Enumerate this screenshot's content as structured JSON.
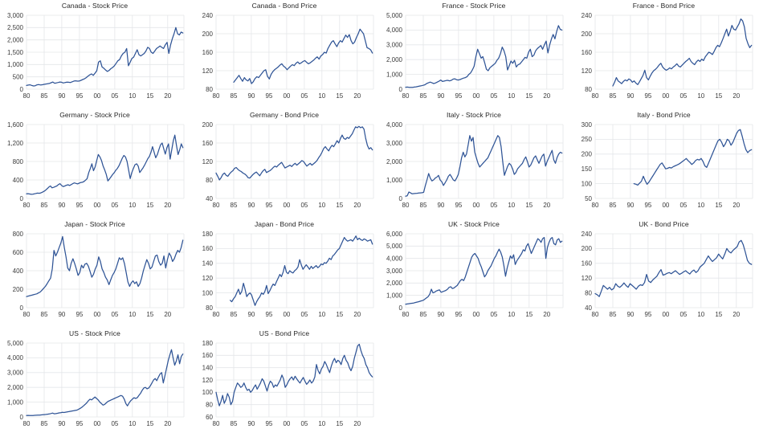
{
  "style": {
    "line_color": "#2F5496",
    "grid_color": "#E4E6E9",
    "text_color": "#3b3b3b",
    "title_color": "#262626",
    "background": "#ffffff"
  },
  "x_axis": {
    "min": 1980,
    "max": 2024.6,
    "ticks": [
      1980,
      1985,
      1990,
      1995,
      2000,
      2005,
      2010,
      2015,
      2020
    ],
    "tick_labels": [
      "80",
      "85",
      "90",
      "95",
      "00",
      "05",
      "10",
      "15",
      "20"
    ]
  },
  "chart_data": [
    {
      "type": "line",
      "title": "Canada - Stock Price",
      "ylim": [
        0,
        3000
      ],
      "ytick": 500,
      "x_start": 1980,
      "x_end": 2024.3,
      "values": [
        150,
        165,
        175,
        150,
        130,
        140,
        175,
        185,
        170,
        180,
        195,
        210,
        220,
        230,
        260,
        290,
        240,
        255,
        270,
        290,
        280,
        250,
        270,
        285,
        280,
        270,
        300,
        330,
        340,
        325,
        330,
        360,
        390,
        420,
        470,
        530,
        580,
        620,
        560,
        650,
        750,
        1100,
        1150,
        900,
        850,
        780,
        720,
        760,
        830,
        880,
        950,
        1050,
        1150,
        1200,
        1350,
        1450,
        1500,
        1650,
        950,
        1100,
        1250,
        1300,
        1450,
        1600,
        1400,
        1350,
        1400,
        1450,
        1550,
        1700,
        1650,
        1500,
        1450,
        1550,
        1650,
        1700,
        1750,
        1700,
        1650,
        1800,
        1900,
        1450,
        1800,
        2050,
        2250,
        2500,
        2250,
        2200,
        2320,
        2280
      ]
    },
    {
      "type": "line",
      "title": "Canada - Bond Price",
      "ylim": [
        80,
        240
      ],
      "ytick": 40,
      "x_start": 1985,
      "x_end": 2024.3,
      "values": [
        95,
        100,
        105,
        110,
        103,
        97,
        105,
        100,
        98,
        103,
        92,
        96,
        103,
        107,
        105,
        110,
        115,
        120,
        122,
        108,
        102,
        112,
        118,
        122,
        125,
        128,
        132,
        135,
        130,
        127,
        122,
        126,
        130,
        133,
        131,
        136,
        139,
        135,
        137,
        140,
        142,
        138,
        135,
        137,
        140,
        143,
        147,
        150,
        145,
        152,
        155,
        160,
        158,
        168,
        175,
        182,
        185,
        178,
        172,
        180,
        185,
        182,
        190,
        197,
        192,
        198,
        185,
        178,
        182,
        192,
        200,
        210,
        205,
        200,
        185,
        170,
        168,
        165,
        158
      ]
    },
    {
      "type": "line",
      "title": "France - Stock Price",
      "ylim": [
        0,
        5000
      ],
      "ytick": 1000,
      "x_start": 1980,
      "x_end": 2024.3,
      "values": [
        130,
        140,
        125,
        120,
        125,
        140,
        160,
        185,
        210,
        235,
        260,
        300,
        380,
        430,
        480,
        430,
        380,
        420,
        480,
        540,
        620,
        520,
        550,
        580,
        600,
        560,
        600,
        680,
        700,
        640,
        620,
        650,
        700,
        750,
        780,
        850,
        1000,
        1100,
        1300,
        1550,
        2200,
        2700,
        2400,
        2100,
        2200,
        1800,
        1350,
        1250,
        1450,
        1550,
        1650,
        1750,
        1950,
        2100,
        2400,
        2850,
        2600,
        2200,
        1300,
        1600,
        1900,
        1750,
        1950,
        1500,
        1650,
        1700,
        1850,
        2000,
        2150,
        2100,
        2500,
        2700,
        2200,
        2300,
        2600,
        2750,
        2850,
        2950,
        2700,
        3000,
        3250,
        2450,
        3000,
        3400,
        3700,
        3400,
        3900,
        4300,
        4050,
        4000
      ]
    },
    {
      "type": "line",
      "title": "France - Bond Price",
      "ylim": [
        80,
        240
      ],
      "ytick": 40,
      "x_start": 1985,
      "x_end": 2024.3,
      "values": [
        87,
        95,
        105,
        98,
        95,
        92,
        97,
        100,
        98,
        102,
        100,
        95,
        98,
        93,
        90,
        96,
        103,
        110,
        121,
        105,
        100,
        108,
        115,
        120,
        123,
        127,
        132,
        136,
        128,
        124,
        121,
        123,
        126,
        124,
        128,
        131,
        135,
        130,
        128,
        132,
        136,
        140,
        143,
        147,
        140,
        136,
        133,
        139,
        143,
        140,
        145,
        142,
        150,
        155,
        160,
        158,
        155,
        162,
        170,
        175,
        172,
        180,
        190,
        200,
        210,
        195,
        205,
        218,
        210,
        208,
        215,
        222,
        232,
        228,
        215,
        190,
        178,
        170,
        175
      ]
    },
    {
      "type": "line",
      "title": "Germany - Stock Price",
      "ylim": [
        0,
        1600
      ],
      "ytick": 400,
      "x_start": 1980,
      "x_end": 2024.3,
      "values": [
        100,
        102,
        95,
        88,
        92,
        100,
        108,
        115,
        112,
        120,
        135,
        155,
        180,
        210,
        245,
        270,
        230,
        240,
        255,
        270,
        300,
        320,
        280,
        255,
        270,
        285,
        295,
        280,
        300,
        320,
        335,
        325,
        315,
        330,
        345,
        350,
        365,
        395,
        430,
        560,
        650,
        750,
        600,
        680,
        820,
        950,
        900,
        820,
        700,
        620,
        520,
        380,
        420,
        470,
        520,
        560,
        610,
        650,
        710,
        790,
        870,
        930,
        900,
        800,
        620,
        430,
        560,
        650,
        730,
        750,
        700,
        560,
        610,
        660,
        720,
        790,
        860,
        910,
        1000,
        1120,
        1000,
        880,
        950,
        1060,
        1160,
        1200,
        1080,
        960,
        1100,
        1180,
        850,
        1050,
        1250,
        1370,
        1150,
        950,
        1050,
        1180,
        1100
      ]
    },
    {
      "type": "line",
      "title": "Germany - Bond Price",
      "ylim": [
        40,
        200
      ],
      "ytick": 40,
      "x_start": 1980,
      "x_end": 2024.3,
      "values": [
        95,
        88,
        80,
        85,
        92,
        95,
        90,
        88,
        93,
        97,
        100,
        105,
        107,
        103,
        100,
        98,
        95,
        93,
        90,
        85,
        84,
        88,
        92,
        95,
        97,
        93,
        89,
        95,
        100,
        103,
        96,
        98,
        100,
        103,
        107,
        110,
        108,
        112,
        115,
        118,
        112,
        106,
        108,
        110,
        112,
        109,
        113,
        116,
        112,
        115,
        118,
        122,
        120,
        115,
        110,
        113,
        116,
        112,
        115,
        118,
        122,
        128,
        133,
        140,
        148,
        152,
        147,
        143,
        150,
        155,
        152,
        158,
        165,
        160,
        170,
        177,
        170,
        168,
        172,
        170,
        175,
        180,
        188,
        195,
        193,
        196,
        193,
        195,
        190,
        170,
        155,
        147,
        150,
        145
      ]
    },
    {
      "type": "line",
      "title": "Italy - Stock Price",
      "ylim": [
        0,
        4000
      ],
      "ytick": 1000,
      "x_start": 1980,
      "x_end": 2024.3,
      "values": [
        120,
        140,
        350,
        300,
        250,
        260,
        270,
        280,
        290,
        300,
        310,
        330,
        700,
        1000,
        1350,
        1100,
        950,
        1000,
        1100,
        1150,
        1250,
        1000,
        900,
        700,
        850,
        1000,
        1200,
        1300,
        1150,
        1000,
        950,
        1100,
        1300,
        1700,
        2200,
        2500,
        2250,
        2400,
        2900,
        3400,
        3100,
        3300,
        2500,
        2200,
        1900,
        1700,
        1800,
        1900,
        2000,
        2100,
        2200,
        2400,
        2600,
        2800,
        3000,
        3200,
        3400,
        3300,
        2800,
        2000,
        1250,
        1500,
        1750,
        1900,
        1800,
        1600,
        1300,
        1400,
        1600,
        1700,
        1800,
        1900,
        2100,
        2250,
        2000,
        1700,
        1800,
        2000,
        2200,
        2300,
        2100,
        1900,
        2100,
        2300,
        2400,
        1750,
        2000,
        2200,
        2400,
        2600,
        2100,
        1900,
        2200,
        2400,
        2500,
        2450
      ]
    },
    {
      "type": "line",
      "title": "Italy - Bond Price",
      "ylim": [
        50,
        300
      ],
      "ytick": 50,
      "x_start": 1991,
      "x_end": 2024.3,
      "values": [
        100,
        98,
        95,
        102,
        108,
        125,
        110,
        98,
        105,
        115,
        125,
        135,
        145,
        155,
        165,
        170,
        160,
        150,
        152,
        155,
        153,
        157,
        160,
        163,
        166,
        170,
        175,
        180,
        185,
        178,
        172,
        165,
        170,
        178,
        182,
        180,
        185,
        175,
        160,
        155,
        170,
        185,
        200,
        215,
        230,
        245,
        250,
        240,
        225,
        235,
        250,
        245,
        230,
        240,
        255,
        270,
        280,
        283,
        260,
        235,
        215,
        205,
        212,
        215
      ]
    },
    {
      "type": "line",
      "title": "Japan - Stock Price",
      "ylim": [
        0,
        800
      ],
      "ytick": 200,
      "x_start": 1980,
      "x_end": 2024.3,
      "values": [
        120,
        125,
        130,
        135,
        140,
        145,
        150,
        160,
        170,
        190,
        210,
        230,
        260,
        290,
        320,
        420,
        620,
        560,
        600,
        650,
        700,
        770,
        650,
        550,
        430,
        400,
        480,
        530,
        480,
        420,
        350,
        380,
        460,
        430,
        470,
        480,
        450,
        390,
        330,
        360,
        420,
        460,
        550,
        500,
        420,
        380,
        330,
        300,
        250,
        300,
        350,
        380,
        420,
        480,
        540,
        520,
        540,
        480,
        380,
        280,
        230,
        270,
        290,
        260,
        280,
        230,
        260,
        320,
        400,
        460,
        520,
        480,
        420,
        440,
        500,
        560,
        570,
        500,
        460,
        480,
        560,
        430,
        520,
        590,
        560,
        500,
        530,
        580,
        620,
        600,
        650,
        730
      ]
    },
    {
      "type": "line",
      "title": "Japan - Bond Price",
      "ylim": [
        80,
        180
      ],
      "ytick": 20,
      "x_start": 1984,
      "x_end": 2024.3,
      "values": [
        90,
        88,
        92,
        95,
        100,
        105,
        98,
        102,
        113,
        105,
        95,
        98,
        100,
        97,
        90,
        83,
        88,
        92,
        95,
        100,
        98,
        102,
        110,
        99,
        103,
        108,
        112,
        110,
        115,
        120,
        125,
        122,
        128,
        137,
        128,
        126,
        130,
        128,
        127,
        130,
        132,
        135,
        145,
        138,
        132,
        135,
        138,
        135,
        132,
        136,
        133,
        135,
        137,
        134,
        136,
        139,
        138,
        141,
        140,
        143,
        147,
        145,
        150,
        152,
        155,
        158,
        160,
        165,
        170,
        175,
        172,
        170,
        171,
        172,
        170,
        173,
        177,
        172,
        174,
        172,
        171,
        173,
        172,
        170,
        171,
        172,
        166
      ]
    },
    {
      "type": "line",
      "title": "UK - Stock Price",
      "ylim": [
        0,
        6000
      ],
      "ytick": 1000,
      "x_start": 1980,
      "x_end": 2024.3,
      "values": [
        280,
        300,
        320,
        340,
        360,
        380,
        420,
        450,
        480,
        520,
        560,
        600,
        700,
        800,
        900,
        1100,
        1500,
        1200,
        1250,
        1350,
        1400,
        1450,
        1250,
        1300,
        1350,
        1400,
        1500,
        1650,
        1700,
        1550,
        1600,
        1700,
        1800,
        2000,
        2200,
        2300,
        2200,
        2500,
        2900,
        3300,
        3700,
        4100,
        4300,
        4400,
        4200,
        4000,
        3600,
        3300,
        2900,
        2500,
        2700,
        3000,
        3200,
        3400,
        3700,
        4000,
        4200,
        4500,
        4750,
        4500,
        4100,
        3400,
        2550,
        3200,
        3700,
        4200,
        4000,
        4300,
        3500,
        3800,
        4000,
        4200,
        4400,
        4700,
        4600,
        5000,
        5200,
        4800,
        4400,
        4700,
        5000,
        5300,
        5600,
        5500,
        5300,
        5600,
        5700,
        4000,
        4900,
        5300,
        5600,
        5700,
        5200,
        5100,
        5500,
        5600,
        5300,
        5400
      ]
    },
    {
      "type": "line",
      "title": "UK - Bond Price",
      "ylim": [
        40,
        240
      ],
      "ytick": 40,
      "x_start": 1980,
      "x_end": 2024.3,
      "values": [
        78,
        75,
        70,
        85,
        100,
        95,
        90,
        95,
        88,
        92,
        105,
        98,
        95,
        100,
        107,
        100,
        95,
        105,
        100,
        95,
        90,
        98,
        102,
        100,
        108,
        130,
        112,
        108,
        115,
        120,
        125,
        135,
        143,
        128,
        130,
        133,
        135,
        132,
        136,
        140,
        135,
        130,
        133,
        137,
        140,
        135,
        131,
        138,
        142,
        135,
        140,
        150,
        155,
        160,
        170,
        180,
        172,
        165,
        170,
        175,
        185,
        178,
        172,
        185,
        200,
        192,
        188,
        195,
        200,
        205,
        218,
        222,
        210,
        190,
        168,
        160,
        157
      ]
    },
    {
      "type": "line",
      "title": "US - Stock Price",
      "ylim": [
        0,
        5000
      ],
      "ytick": 1000,
      "x_start": 1980,
      "x_end": 2024.3,
      "values": [
        100,
        105,
        100,
        95,
        100,
        110,
        115,
        120,
        125,
        135,
        145,
        155,
        170,
        185,
        200,
        230,
        260,
        210,
        225,
        245,
        270,
        290,
        310,
        300,
        320,
        340,
        360,
        380,
        400,
        420,
        440,
        460,
        520,
        580,
        650,
        750,
        850,
        950,
        1100,
        1200,
        1150,
        1250,
        1350,
        1250,
        1150,
        1000,
        900,
        800,
        850,
        950,
        1050,
        1100,
        1150,
        1200,
        1250,
        1300,
        1350,
        1400,
        1450,
        1400,
        1200,
        900,
        750,
        950,
        1100,
        1200,
        1300,
        1250,
        1300,
        1450,
        1600,
        1800,
        1950,
        2000,
        1900,
        1950,
        2100,
        2300,
        2500,
        2600,
        2450,
        2700,
        2900,
        3000,
        2300,
        2800,
        3300,
        3800,
        4200,
        4550,
        4000,
        3500,
        3800,
        4200,
        3600,
        4100,
        4250
      ]
    },
    {
      "type": "line",
      "title": "US - Bond Price",
      "ylim": [
        60,
        180
      ],
      "ytick": 20,
      "x_start": 1980,
      "x_end": 2024.3,
      "values": [
        100,
        88,
        78,
        85,
        95,
        82,
        88,
        98,
        92,
        80,
        85,
        100,
        108,
        115,
        112,
        108,
        110,
        115,
        108,
        103,
        105,
        100,
        103,
        108,
        112,
        105,
        110,
        115,
        122,
        118,
        110,
        102,
        112,
        118,
        115,
        108,
        112,
        110,
        115,
        120,
        128,
        122,
        108,
        112,
        118,
        122,
        125,
        120,
        126,
        122,
        118,
        115,
        120,
        124,
        118,
        113,
        116,
        120,
        115,
        118,
        125,
        145,
        135,
        130,
        138,
        142,
        150,
        145,
        138,
        132,
        142,
        150,
        155,
        148,
        152,
        150,
        145,
        155,
        160,
        152,
        148,
        140,
        135,
        142,
        155,
        165,
        175,
        178,
        168,
        160,
        155,
        145,
        140,
        132,
        128,
        125
      ]
    }
  ]
}
